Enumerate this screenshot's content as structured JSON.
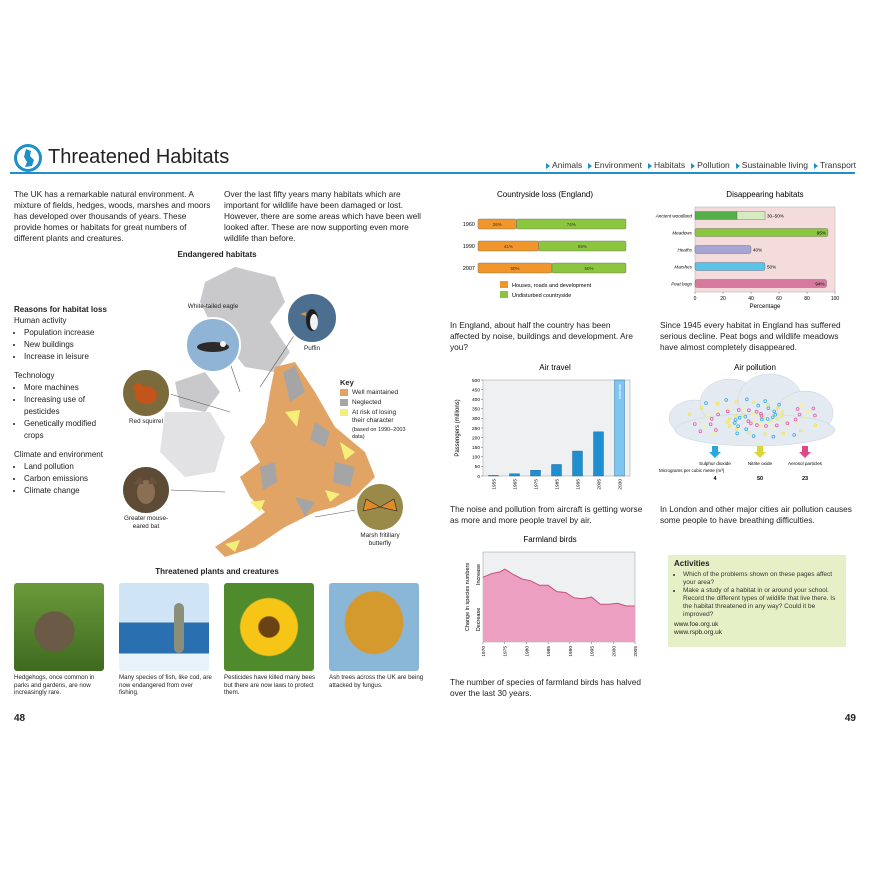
{
  "header": {
    "title": "Threatened Habitats",
    "nav": [
      "Animals",
      "Environment",
      "Habitats",
      "Pollution",
      "Sustainable living",
      "Transport"
    ]
  },
  "left_page": {
    "intro": [
      "The UK has a remarkable natural environment. A mixture of fields, hedges, woods, marshes and moors has developed over thousands of years. These provide homes or habitats for great numbers of different plants and creatures.",
      "Over the last fifty years many habitats which are important for wildlife have been damaged or lost. However, there are some areas which have been well looked after. These are now supporting even more wildlife than before."
    ],
    "map": {
      "title": "Endangered habitats",
      "animals": [
        "White-tailed eagle",
        "Puffin",
        "Red squirrel",
        "Greater mouse-eared bat",
        "Marsh fritillary butterfly"
      ],
      "key": {
        "title": "Key",
        "items": [
          {
            "label": "Well maintained",
            "color": "#e2a465"
          },
          {
            "label": "Neglected",
            "color": "#a5a5a5"
          },
          {
            "label": "At risk of losing their character",
            "color": "#f3ef79"
          }
        ],
        "note": "(based on 1990–2003 data)"
      }
    },
    "reasons": {
      "title": "Reasons for habitat loss",
      "groups": [
        {
          "heading": "Human activity",
          "items": [
            "Population increase",
            "New buildings",
            "Increase in leisure"
          ]
        },
        {
          "heading": "Technology",
          "items": [
            "More machines",
            "Increasing use of pesticides",
            "Genetically modified crops"
          ]
        },
        {
          "heading": "Climate and environment",
          "items": [
            "Land pollution",
            "Carbon emissions",
            "Climate change"
          ]
        }
      ]
    },
    "gallery": {
      "title": "Threatened plants and creatures",
      "captions": [
        "Hedgehogs, once common in parks and gardens, are now increasingly rare.",
        "Many species of fish, like cod, are now endangered from over fishing.",
        "Pesticides have killed many bees but there are now laws to protect them.",
        "Ash trees across the UK are being attacked by fungus."
      ]
    },
    "page_number": "48"
  },
  "right_page": {
    "countryside": {
      "type": "stacked-bar",
      "title": "Countryside loss (England)",
      "categories": [
        "1960",
        "1990",
        "2007"
      ],
      "series": [
        {
          "name": "Houses, roads and development",
          "color": "#f0962a",
          "values": [
            26,
            41,
            50
          ],
          "value_labels": [
            "26%",
            "41%",
            "50%"
          ]
        },
        {
          "name": "Undisturbed countryside",
          "color": "#8cc63f",
          "values": [
            74,
            59,
            50
          ],
          "value_labels": [
            "74%",
            "59%",
            "50%"
          ]
        }
      ],
      "text": "In England, about half the country has been affected by noise, buildings and development. Are you?"
    },
    "disappearing": {
      "type": "hbar",
      "title": "Disappearing habitats",
      "categories": [
        "Ancient woodland",
        "Meadows",
        "Heaths",
        "Marshes",
        "Peat bogs"
      ],
      "values": [
        [
          30,
          50
        ],
        95,
        40,
        50,
        94
      ],
      "value_labels": [
        "30–50%",
        "95%",
        "40%",
        "50%",
        "94%"
      ],
      "colors": [
        "#55b04a",
        "#8cc63f",
        "#a7a6d2",
        "#5bc2ea",
        "#d57a9c"
      ],
      "xlim": [
        0,
        100
      ],
      "xticks": [
        0,
        20,
        40,
        60,
        80,
        100
      ],
      "xlabel": "Percentage",
      "text": "Since 1945 every habitat in England has suffered serious decline. Peat bogs and wildlife meadows have almost completely disappeared."
    },
    "air_travel": {
      "type": "bar",
      "title": "Air travel",
      "categories": [
        "1955",
        "1965",
        "1975",
        "1985",
        "1995",
        "2005",
        "2030"
      ],
      "values": [
        3,
        12,
        30,
        60,
        130,
        230,
        500
      ],
      "colors": [
        "#1e8fd0",
        "#1e8fd0",
        "#1e8fd0",
        "#1e8fd0",
        "#1e8fd0",
        "#1e8fd0",
        "#7cc6f0"
      ],
      "bar_note": "estimate",
      "ylim": [
        0,
        500
      ],
      "yticks": [
        0,
        50,
        100,
        150,
        200,
        250,
        300,
        350,
        400,
        450,
        500
      ],
      "ylabel": "Passengers (millions)",
      "text": "The noise and pollution from aircraft is getting worse as more and more people travel by air."
    },
    "air_pollution": {
      "title": "Air pollution",
      "unit_label": "Micrograms per cubic metre (m³)",
      "items": [
        {
          "name": "Sulphur dioxide",
          "value": "4",
          "color": "#29a8e0"
        },
        {
          "name": "Nitrite oxide",
          "value": "50",
          "color": "#d8d83a"
        },
        {
          "name": "Aerosol particles",
          "value": "23",
          "color": "#e0468c"
        }
      ],
      "text": "In London and other major cities air pollution causes some people to have breathing difficulties."
    },
    "farmland": {
      "type": "area",
      "title": "Farmland birds",
      "x": [
        1970,
        1972,
        1974,
        1975,
        1977,
        1979,
        1981,
        1983,
        1985,
        1987,
        1989,
        1991,
        1993,
        1995,
        1997,
        1999,
        2001,
        2003,
        2005
      ],
      "values": [
        72,
        76,
        78,
        81,
        75,
        70,
        68,
        63,
        63,
        56,
        55,
        49,
        48,
        50,
        42,
        42,
        43,
        40,
        40
      ],
      "color": "#ec9fc0",
      "line_color": "#c4517f",
      "xlim": [
        1970,
        2005
      ],
      "xticks": [
        1970,
        1975,
        1980,
        1985,
        1990,
        1995,
        2000,
        2005
      ],
      "ylim": [
        0,
        100
      ],
      "ylabels": [
        "Increase",
        "Decrease"
      ],
      "ylabel": "Change in species numbers",
      "text": "The number of species of farmland birds has halved over the last 30 years."
    },
    "activities": {
      "title": "Activities",
      "items": [
        "Which of the problems shown on these pages affect your area?",
        "Make a study of a habitat in or around your school. Record the different types of wildlife that live there. Is the habitat threatened in any way? Could it be improved?"
      ],
      "links": [
        "www.foe.org.uk",
        "www.rspb.org.uk"
      ]
    },
    "page_number": "49"
  }
}
